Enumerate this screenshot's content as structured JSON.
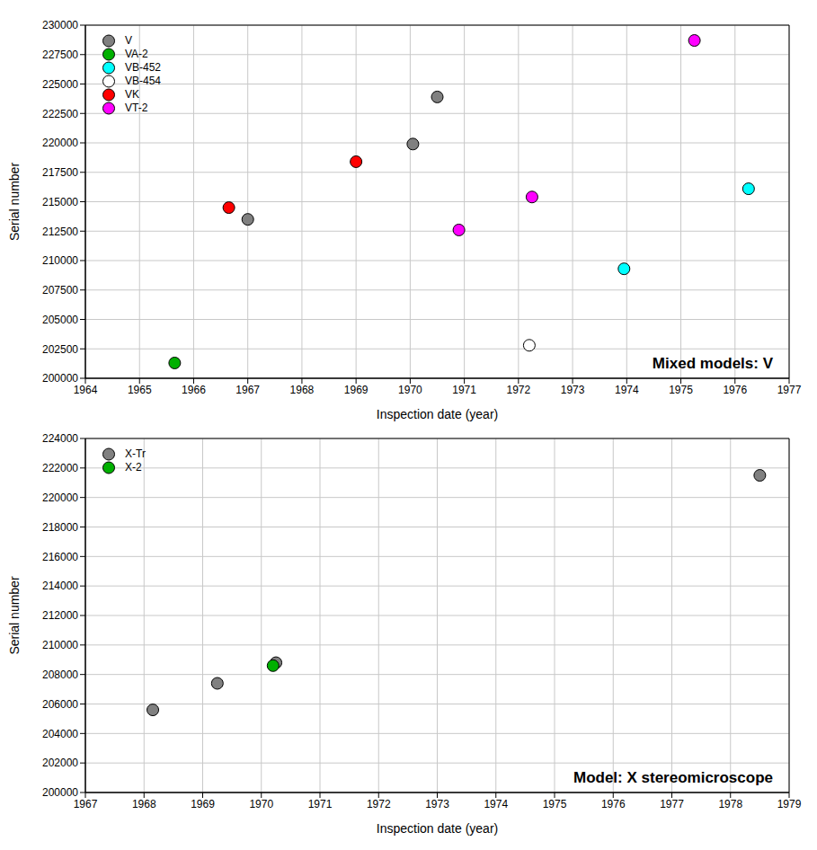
{
  "chart_data": [
    {
      "type": "scatter",
      "annotation": "Mixed models: V",
      "x_label": "Inspection date (year)",
      "y_label": "Serial number",
      "xlim": [
        1964,
        1977
      ],
      "xticks": [
        1964,
        1965,
        1966,
        1967,
        1968,
        1969,
        1970,
        1971,
        1972,
        1973,
        1974,
        1975,
        1976,
        1977
      ],
      "ylim": [
        200000,
        230000
      ],
      "yticks": [
        200000,
        202500,
        205000,
        207500,
        210000,
        212500,
        215000,
        217500,
        220000,
        222500,
        225000,
        227500,
        230000
      ],
      "grid": true,
      "legend": "top-left",
      "marker": "circle",
      "series": [
        {
          "name": "V",
          "color": "#808080",
          "x": [
            1967.0,
            1970.05,
            1970.5
          ],
          "values": [
            213500,
            219900,
            223900
          ]
        },
        {
          "name": "VA-2",
          "color": "#00b000",
          "x": [
            1965.65
          ],
          "values": [
            201300
          ]
        },
        {
          "name": "VB-452",
          "color": "#00ffff",
          "x": [
            1973.95,
            1976.25
          ],
          "values": [
            209300,
            216100
          ]
        },
        {
          "name": "VB-454",
          "color": "#ffffff",
          "x": [
            1972.2
          ],
          "values": [
            202800
          ]
        },
        {
          "name": "VK",
          "color": "#ff0000",
          "x": [
            1966.65,
            1969.0
          ],
          "values": [
            214500,
            218400
          ]
        },
        {
          "name": "VT-2",
          "color": "#ff00ff",
          "x": [
            1970.9,
            1972.25,
            1975.25
          ],
          "values": [
            212600,
            215400,
            228700
          ]
        }
      ]
    },
    {
      "type": "scatter",
      "annotation": "Model: X stereomicroscope",
      "x_label": "Inspection date (year)",
      "y_label": "Serial number",
      "xlim": [
        1967,
        1979
      ],
      "xticks": [
        1967,
        1968,
        1969,
        1970,
        1971,
        1972,
        1973,
        1974,
        1975,
        1976,
        1977,
        1978,
        1979
      ],
      "ylim": [
        200000,
        224000
      ],
      "yticks": [
        200000,
        202000,
        204000,
        206000,
        208000,
        210000,
        212000,
        214000,
        216000,
        218000,
        220000,
        222000,
        224000
      ],
      "grid": true,
      "legend": "top-left",
      "marker": "circle",
      "series": [
        {
          "name": "X-Tr",
          "color": "#808080",
          "x": [
            1968.15,
            1969.25,
            1970.25,
            1978.5
          ],
          "values": [
            205600,
            207400,
            208800,
            221500
          ]
        },
        {
          "name": "X-2",
          "color": "#00b000",
          "x": [
            1970.2
          ],
          "values": [
            208600
          ]
        }
      ]
    }
  ]
}
